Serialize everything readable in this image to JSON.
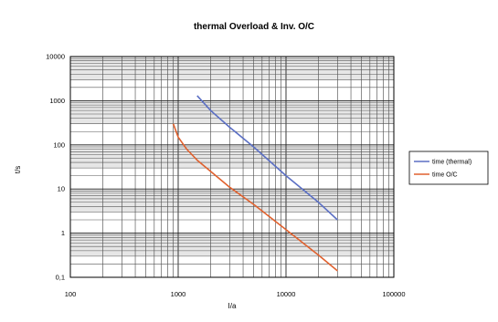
{
  "chart_data": {
    "type": "line",
    "title": "thermal Overload & Inv. O/C",
    "xlabel": "I/a",
    "ylabel": "t/s",
    "x_scale": "log",
    "y_scale": "log",
    "xlim": [
      100,
      100000
    ],
    "ylim": [
      0.1,
      10000
    ],
    "x_ticks": [
      "100",
      "1000",
      "10000",
      "100000"
    ],
    "y_ticks": [
      "0,1",
      "1",
      "10",
      "100",
      "1000",
      "10000"
    ],
    "grid": true,
    "legend_position": "right",
    "series": [
      {
        "name": "time (thermal)",
        "color": "#5b6fc4",
        "x": [
          1500,
          2000,
          3000,
          5000,
          10000,
          20000,
          30000
        ],
        "y": [
          1300,
          600,
          250,
          90,
          20,
          5,
          2
        ]
      },
      {
        "name": "time O/C",
        "color": "#e0612e",
        "x": [
          900,
          1000,
          1200,
          1500,
          2000,
          3000,
          5000,
          10000,
          20000,
          30000
        ],
        "y": [
          300,
          150,
          80,
          45,
          25,
          11,
          4.5,
          1.2,
          0.32,
          0.14
        ]
      }
    ]
  }
}
